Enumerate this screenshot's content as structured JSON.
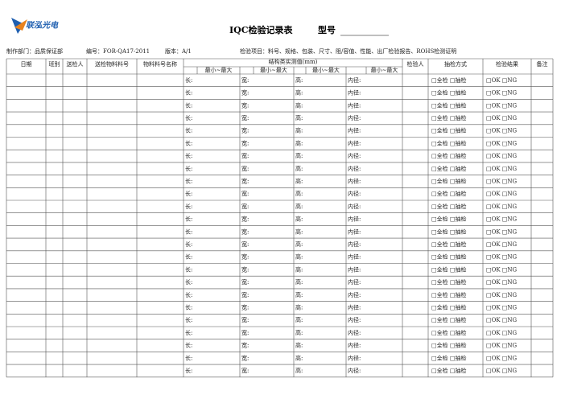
{
  "header": {
    "logo": "联泓光电",
    "title": "IQC检验记录表",
    "model_label": "型号"
  },
  "info": {
    "department": "制作部门：品质保证部",
    "code": "编号：FOR-QA17-2011",
    "version": "版本：A/1",
    "items": "检验项目：料号、规格、包装、尺寸、阻/容值、性能、出厂检验报告、ROHS检测证明"
  },
  "table": {
    "headers": [
      "日期",
      "班别",
      "送检人",
      "送检物料料号",
      "物料料号名称",
      "结构类实测值(mm)",
      "检验人",
      "抽检方式",
      "检验结果",
      "备注"
    ],
    "subheaders": [
      "最小~最大",
      "最小~最大",
      "最小~最大",
      "最小~最大"
    ],
    "rows": [
      {
        "length": "长:",
        "width": "宽:",
        "height": "高:",
        "inner": "内径:",
        "method": "□全检 □抽检",
        "result": "□OK □NG"
      },
      {
        "length": "长:",
        "width": "宽:",
        "height": "高:",
        "inner": "内径:",
        "method": "□全检 □抽检",
        "result": "□OK □NG"
      },
      {
        "length": "长:",
        "width": "宽:",
        "height": "高:",
        "inner": "内径:",
        "method": "□全检 □抽检",
        "result": "□OK □NG"
      },
      {
        "length": "长:",
        "width": "宽:",
        "height": "高:",
        "inner": "内径:",
        "method": "□全检 □抽检",
        "result": "□OK □NG"
      },
      {
        "length": "长:",
        "width": "宽:",
        "height": "高:",
        "inner": "内径:",
        "method": "□全检 □抽检",
        "result": "□OK □NG"
      },
      {
        "length": "长:",
        "width": "宽:",
        "height": "高:",
        "inner": "内径:",
        "method": "□全检 □抽检",
        "result": "□OK □NG"
      },
      {
        "length": "长:",
        "width": "宽:",
        "height": "高:",
        "inner": "内径:",
        "method": "□全检 □抽检",
        "result": "□OK □NG"
      },
      {
        "length": "长:",
        "width": "宽:",
        "height": "高:",
        "inner": "内径:",
        "method": "□全检 □抽检",
        "result": "□OK □NG"
      },
      {
        "length": "长:",
        "width": "宽:",
        "height": "高:",
        "inner": "内径:",
        "method": "□全检 □抽检",
        "result": "□OK □NG"
      },
      {
        "length": "长:",
        "width": "宽:",
        "height": "高:",
        "inner": "内径:",
        "method": "□全检 □抽检",
        "result": "□OK □NG"
      },
      {
        "length": "长:",
        "width": "宽:",
        "height": "高:",
        "inner": "内径:",
        "method": "□全检 □抽检",
        "result": "□OK □NG"
      },
      {
        "length": "长:",
        "width": "宽:",
        "height": "高:",
        "inner": "内径:",
        "method": "□全检 □抽检",
        "result": "□OK □NG"
      },
      {
        "length": "长:",
        "width": "宽:",
        "height": "高:",
        "inner": "内径:",
        "method": "□全检 □抽检",
        "result": "□OK □NG"
      },
      {
        "length": "长:",
        "width": "宽:",
        "height": "高:",
        "inner": "内径:",
        "method": "□全检 □抽检",
        "result": "□OK □NG"
      },
      {
        "length": "长:",
        "width": "宽:",
        "height": "高:",
        "inner": "内径:",
        "method": "□全检 □抽检",
        "result": "□OK □NG"
      },
      {
        "length": "长:",
        "width": "宽:",
        "height": "高:",
        "inner": "内径:",
        "method": "□全检 □抽检",
        "result": "□OK □NG"
      },
      {
        "length": "长:",
        "width": "宽:",
        "height": "高:",
        "inner": "内径:",
        "method": "□全检 □抽检",
        "result": "□OK □NG"
      },
      {
        "length": "长:",
        "width": "宽:",
        "height": "高:",
        "inner": "内径:",
        "method": "□全检 □抽检",
        "result": "□OK □NG"
      },
      {
        "length": "长:",
        "width": "宽:",
        "height": "高:",
        "inner": "内径:",
        "method": "□全检 □抽检",
        "result": "□OK □NG"
      },
      {
        "length": "长:",
        "width": "宽:",
        "height": "高:",
        "inner": "内径:",
        "method": "□全检 □抽检",
        "result": "□OK □NG"
      },
      {
        "length": "长:",
        "width": "宽:",
        "height": "高:",
        "inner": "内径:",
        "method": "□全检 □抽检",
        "result": "□OK □NG"
      },
      {
        "length": "长:",
        "width": "宽:",
        "height": "高:",
        "inner": "内径:",
        "method": "□全检 □抽检",
        "result": "□OK □NG"
      },
      {
        "length": "长:",
        "width": "宽:",
        "height": "高:",
        "inner": "内径:",
        "method": "□全检 □抽检",
        "result": "□OK □NG"
      },
      {
        "length": "长:",
        "width": "宽:",
        "height": "高:",
        "inner": "内径:",
        "method": "□全检 □抽检",
        "result": "□OK □NG"
      }
    ]
  }
}
